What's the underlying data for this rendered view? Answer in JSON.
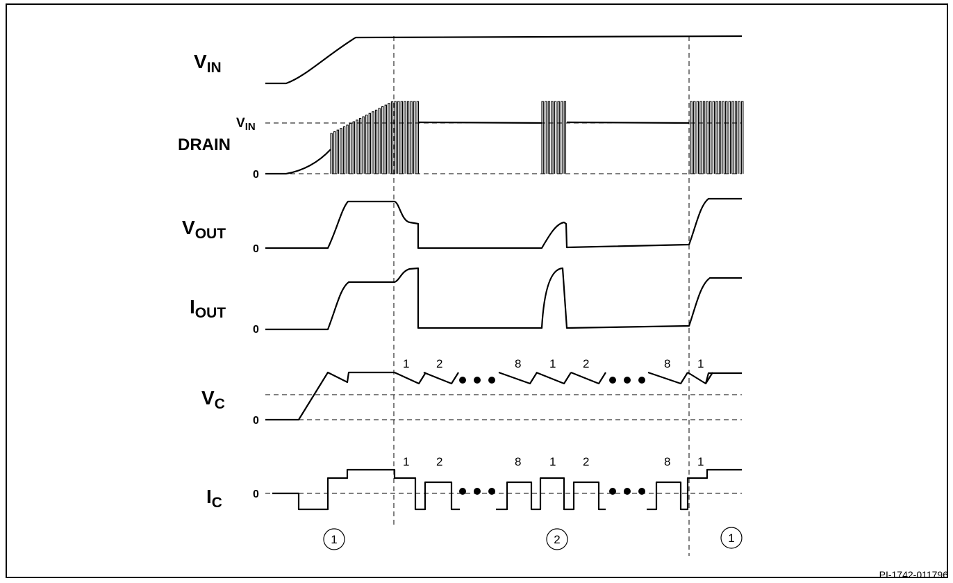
{
  "signals": [
    {
      "id": "vin",
      "main": "V",
      "sub": "IN"
    },
    {
      "id": "drain",
      "main": "DRAIN",
      "sub": ""
    },
    {
      "id": "vout",
      "main": "V",
      "sub": "OUT"
    },
    {
      "id": "iout",
      "main": "I",
      "sub": "OUT"
    },
    {
      "id": "vc",
      "main": "V",
      "sub": "C"
    },
    {
      "id": "ic",
      "main": "I",
      "sub": "C"
    }
  ],
  "drain_level_label": {
    "main": "V",
    "sub": "IN"
  },
  "zero_label": "0",
  "vc_cycle_labels": [
    "1",
    "2",
    "8",
    "1",
    "2",
    "8",
    "1"
  ],
  "ic_cycle_labels": [
    "1",
    "2",
    "8",
    "1",
    "2",
    "8",
    "1"
  ],
  "phase_markers": [
    "1",
    "2",
    "1"
  ],
  "figure_code": "PI-1742-011796"
}
